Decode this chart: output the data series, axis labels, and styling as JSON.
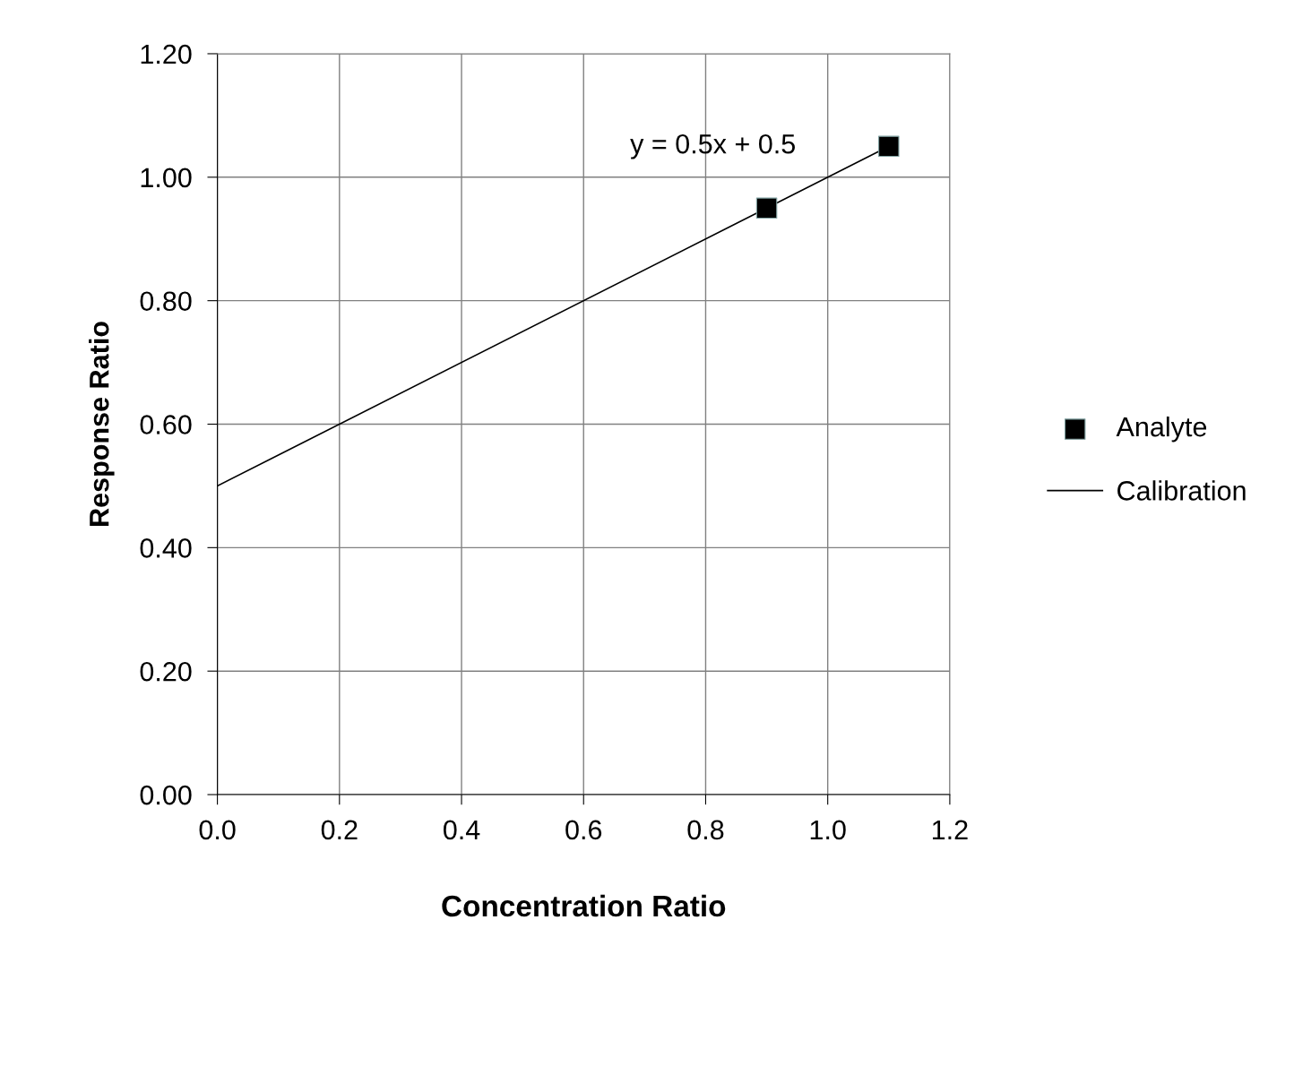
{
  "chart_data": {
    "type": "scatter",
    "xlabel": "Concentration Ratio",
    "ylabel": "Response Ratio",
    "series": [
      {
        "name": "Analyte",
        "color": "#000000",
        "marker": "square",
        "x": [
          0.9,
          1.1
        ],
        "values": [
          0.95,
          1.05
        ]
      },
      {
        "name": "Calibration",
        "type": "line",
        "color": "#000000",
        "marker": "none",
        "line_style": "solid",
        "x": [
          0,
          1.1
        ],
        "values": [
          0.5,
          1.05
        ]
      }
    ],
    "annotations": [
      "y = 0.5x + 0.5"
    ],
    "xlim": [
      0,
      1.2
    ],
    "ylim": [
      0,
      1.2
    ],
    "xticks": [
      {
        "value": 0,
        "label": "0.0"
      },
      {
        "value": 0.2,
        "label": "0.2"
      },
      {
        "value": 0.4,
        "label": "0.4"
      },
      {
        "value": 0.6,
        "label": "0.6"
      },
      {
        "value": 0.8,
        "label": "0.8"
      },
      {
        "value": 1.0,
        "label": "1.0"
      },
      {
        "value": 1.2,
        "label": "1.2"
      }
    ],
    "yticks": [
      {
        "value": 0,
        "label": "0.00"
      },
      {
        "value": 0.2,
        "label": "0.20"
      },
      {
        "value": 0.4,
        "label": "0.40"
      },
      {
        "value": 0.6,
        "label": "0.60"
      },
      {
        "value": 0.8,
        "label": "0.80"
      },
      {
        "value": 1.0,
        "label": "1.00"
      },
      {
        "value": 1.2,
        "label": "1.20"
      }
    ],
    "grid": true,
    "legend": "right"
  }
}
